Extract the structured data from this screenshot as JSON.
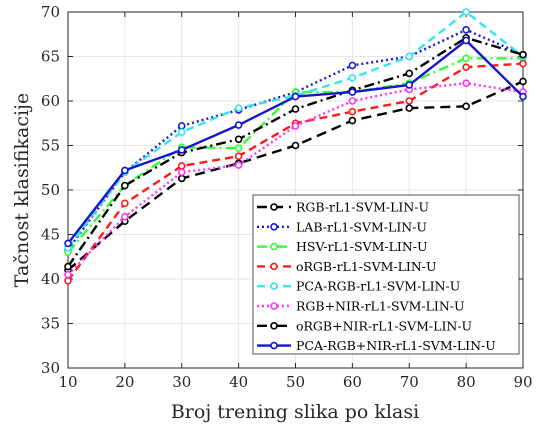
{
  "chart_data": {
    "type": "line",
    "title": "",
    "xlabel": "Broj trening slika po klasi",
    "ylabel": "Tačnost klasifikacije",
    "x": [
      10,
      20,
      30,
      40,
      50,
      60,
      70,
      80,
      90
    ],
    "xlim": [
      10,
      90
    ],
    "ylim": [
      30,
      70
    ],
    "xticks": [
      "10",
      "20",
      "30",
      "40",
      "50",
      "60",
      "70",
      "80",
      "90"
    ],
    "yticks": [
      "30",
      "35",
      "40",
      "45",
      "50",
      "55",
      "60",
      "65",
      "70"
    ],
    "grid": true,
    "legend_position": "bottom-right",
    "series": [
      {
        "name": "RGB-rL1-SVM-LIN-U",
        "color": "#000000",
        "dash": "long",
        "marker": "circle",
        "values": [
          41.0,
          46.5,
          51.3,
          53.0,
          55.0,
          57.8,
          59.2,
          59.4,
          62.2
        ]
      },
      {
        "name": "LAB-rL1-SVM-LIN-U",
        "color": "#1a1adb",
        "dash": "dot",
        "marker": "circle",
        "values": [
          43.3,
          52.0,
          57.2,
          59.0,
          61.0,
          64.0,
          65.0,
          68.0,
          65.2
        ]
      },
      {
        "name": "HSV-rL1-SVM-LIN-U",
        "color": "#33ff33",
        "dash": "dashdot",
        "marker": "circle",
        "values": [
          43.0,
          50.5,
          54.8,
          54.7,
          61.0,
          61.0,
          62.0,
          64.8,
          64.8
        ]
      },
      {
        "name": "oRGB-rL1-SVM-LIN-U",
        "color": "#ff1a1a",
        "dash": "dash",
        "marker": "circle",
        "values": [
          39.8,
          48.5,
          52.7,
          53.8,
          57.5,
          58.8,
          60.0,
          63.8,
          64.2
        ]
      },
      {
        "name": "PCA-RGB-rL1-SVM-LIN-U",
        "color": "#33e6f0",
        "dash": "dash",
        "marker": "circle",
        "values": [
          43.5,
          52.0,
          56.5,
          59.2,
          60.6,
          62.6,
          65.0,
          70.0,
          65.0
        ]
      },
      {
        "name": "RGB+NIR-rL1-SVM-LIN-U",
        "color": "#ff33ff",
        "dash": "dot",
        "marker": "circle",
        "values": [
          40.5,
          47.0,
          52.0,
          52.8,
          57.2,
          60.0,
          61.3,
          62.0,
          61.0
        ]
      },
      {
        "name": "oRGB+NIR-rL1-SVM-LIN-U",
        "color": "#000000",
        "dash": "dashdot",
        "marker": "circle",
        "values": [
          41.4,
          50.5,
          54.2,
          55.7,
          59.1,
          61.2,
          63.1,
          67.1,
          65.2
        ]
      },
      {
        "name": "PCA-RGB+NIR-rL1-SVM-LIN-U",
        "color": "#1515d0",
        "dash": "solid",
        "marker": "circle",
        "values": [
          44.0,
          52.2,
          54.5,
          57.3,
          60.5,
          61.0,
          61.8,
          66.8,
          60.5
        ]
      }
    ]
  }
}
